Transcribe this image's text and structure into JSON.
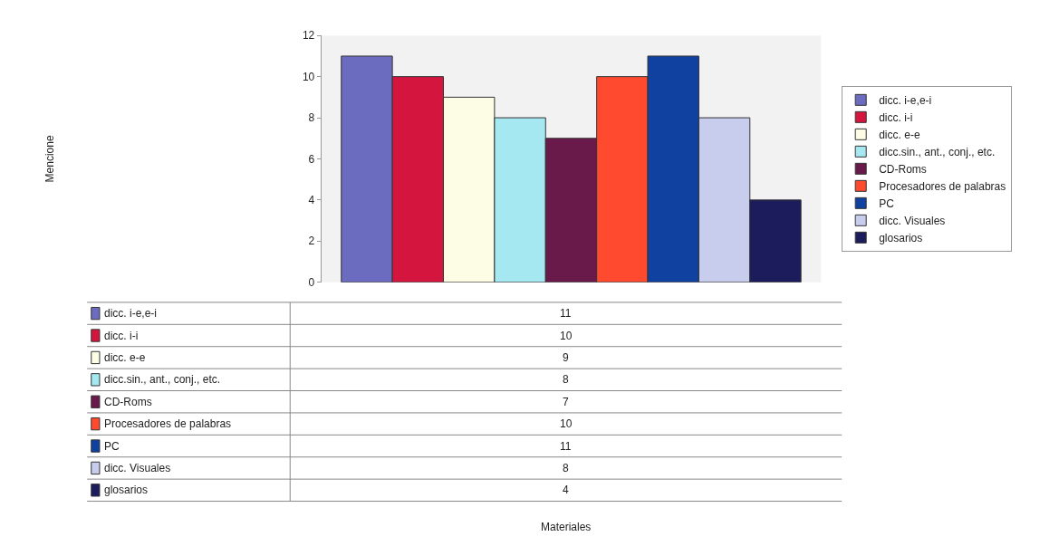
{
  "chart_data": [
    {
      "type": "bar",
      "categories": [
        null
      ],
      "series": [
        {
          "name": "dicc. i-e,e-i",
          "color": "#6b6bbf",
          "values": [
            11
          ]
        },
        {
          "name": "dicc. i-i",
          "color": "#d4163e",
          "values": [
            10
          ]
        },
        {
          "name": "dicc. e-e",
          "color": "#fdfde6",
          "values": [
            9
          ]
        },
        {
          "name": "dicc.sin., ant., conj., etc.",
          "color": "#a6e8f2",
          "values": [
            8
          ]
        },
        {
          "name": "CD-Roms",
          "color": "#6a1a4a",
          "values": [
            7
          ]
        },
        {
          "name": "Procesadores de palabras",
          "color": "#ff4a30",
          "values": [
            10
          ]
        },
        {
          "name": "PC",
          "color": "#1040a0",
          "values": [
            11
          ]
        },
        {
          "name": "dicc. Visuales",
          "color": "#c8cdee",
          "values": [
            8
          ]
        },
        {
          "name": "glosarios",
          "color": "#1c1c5c",
          "values": [
            4
          ]
        }
      ],
      "ylim": [
        0,
        12
      ],
      "yticks": [
        0,
        2,
        4,
        6,
        8,
        10,
        12
      ],
      "legend": "right",
      "annotations": [
        "Mencione",
        "Materiales"
      ]
    },
    {
      "type": "other",
      "categories": [
        "dicc. i-e,e-i",
        "dicc. i-i",
        "dicc. e-e",
        "dicc.sin., ant., conj., etc.",
        "CD-Roms",
        "Procesadores de palabras",
        "PC",
        "dicc. Visuales",
        "glosarios"
      ],
      "values": [
        11,
        10,
        9,
        8,
        7,
        10,
        11,
        8,
        4
      ],
      "colors": [
        "#6b6bbf",
        "#d4163e",
        "#fdfde6",
        "#a6e8f2",
        "#6a1a4a",
        "#ff4a30",
        "#1040a0",
        "#c8cdee",
        "#1c1c5c"
      ],
      "data_labels": true
    }
  ]
}
